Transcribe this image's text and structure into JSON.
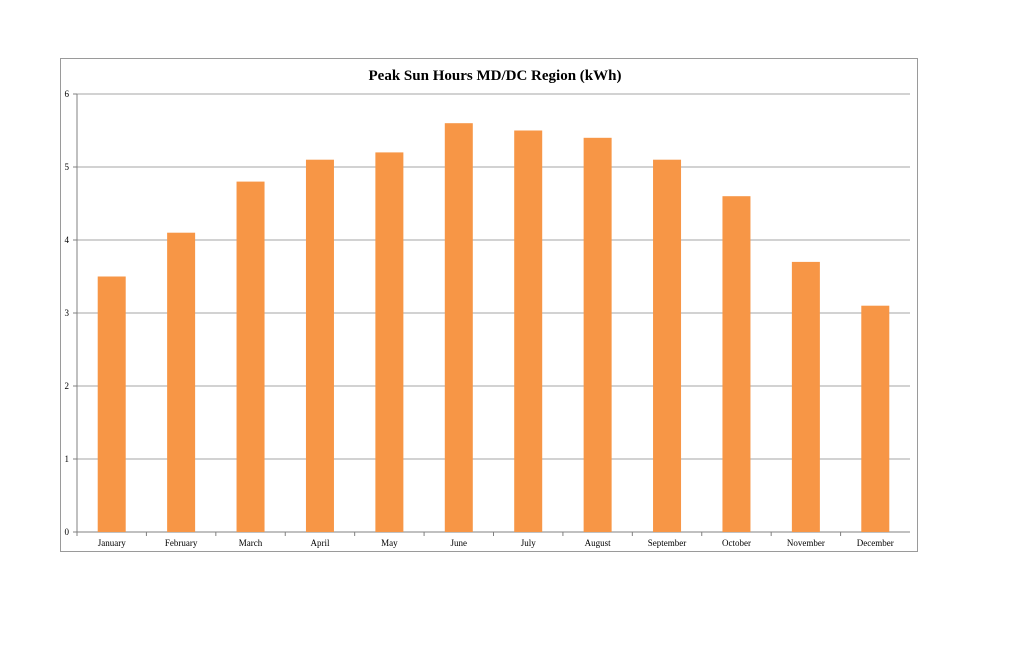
{
  "chart_data": {
    "type": "bar",
    "title": "Peak Sun Hours MD/DC Region (kWh)",
    "categories": [
      "January",
      "February",
      "March",
      "April",
      "May",
      "June",
      "July",
      "August",
      "September",
      "October",
      "November",
      "December"
    ],
    "values": [
      3.5,
      4.1,
      4.8,
      5.1,
      5.2,
      5.6,
      5.5,
      5.4,
      5.1,
      4.6,
      3.7,
      3.1
    ],
    "yticks": [
      "0",
      "1",
      "2",
      "3",
      "4",
      "5",
      "6"
    ],
    "ylim": [
      0,
      6
    ],
    "grid": true,
    "bar_color": "#f79646"
  }
}
